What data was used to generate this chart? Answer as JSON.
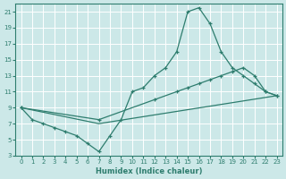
{
  "xlabel": "Humidex (Indice chaleur)",
  "background_color": "#cce8e8",
  "grid_color": "#ffffff",
  "line_color": "#2e7d6e",
  "xlim": [
    -0.5,
    23.5
  ],
  "ylim": [
    3,
    22
  ],
  "xticks": [
    0,
    1,
    2,
    3,
    4,
    5,
    6,
    7,
    8,
    9,
    10,
    11,
    12,
    13,
    14,
    15,
    16,
    17,
    18,
    19,
    20,
    21,
    22,
    23
  ],
  "yticks": [
    3,
    5,
    7,
    9,
    11,
    13,
    15,
    17,
    19,
    21
  ],
  "lines": [
    {
      "x": [
        0,
        1,
        2,
        3,
        4,
        5,
        6,
        7,
        8,
        9,
        10,
        11,
        12,
        13,
        14,
        15,
        16,
        17,
        18,
        19,
        20,
        21,
        22,
        23
      ],
      "y": [
        9,
        7.5,
        7,
        6.5,
        6,
        5.5,
        4.5,
        3.5,
        5.5,
        7.5,
        11,
        11.5,
        13,
        14,
        16,
        21,
        21.5,
        19.5,
        16,
        14,
        13,
        12,
        11,
        10.5
      ],
      "marker": true
    },
    {
      "x": [
        0,
        7,
        12,
        14,
        15,
        16,
        17,
        18,
        19,
        20,
        21,
        22,
        23
      ],
      "y": [
        9,
        7.5,
        10,
        11,
        11.5,
        12,
        12.5,
        13,
        13.5,
        14,
        13,
        11,
        10.5
      ],
      "marker": false
    },
    {
      "x": [
        0,
        7,
        23
      ],
      "y": [
        9,
        7,
        10.5
      ],
      "marker": false
    }
  ]
}
